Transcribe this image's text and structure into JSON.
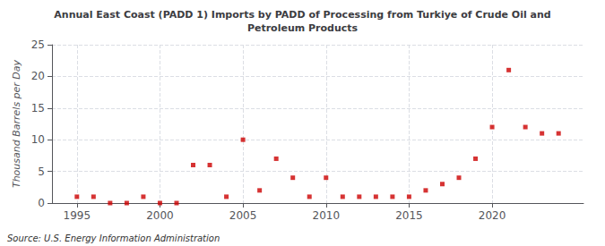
{
  "chart_data": {
    "type": "scatter",
    "title": "Annual East Coast (PADD 1) Imports by PADD of Processing from Turkiye of Crude Oil and\nPetroleum Products",
    "ylabel": "Thousand Barrels per Day",
    "annotation": "Source: U.S. Energy Information Administration",
    "x": [
      1995,
      1996,
      1997,
      1998,
      1999,
      2000,
      2001,
      2002,
      2003,
      2004,
      2005,
      2006,
      2007,
      2008,
      2009,
      2010,
      2011,
      2012,
      2013,
      2014,
      2015,
      2016,
      2017,
      2018,
      2019,
      2020,
      2021,
      2022,
      2023,
      2024
    ],
    "values": [
      1,
      1,
      0,
      0,
      1,
      0,
      0,
      6,
      6,
      1,
      10,
      2,
      7,
      4,
      1,
      4,
      1,
      1,
      1,
      1,
      1,
      2,
      3,
      4,
      7,
      12,
      21,
      12,
      11,
      11
    ],
    "color": "#cc0000",
    "marker": "square",
    "xlim": [
      1993.5,
      2025.5
    ],
    "ylim": [
      0,
      25
    ],
    "xticks": [
      1995,
      2000,
      2005,
      2010,
      2015,
      2020
    ],
    "yticks": [
      0,
      5,
      10,
      15,
      20,
      25
    ],
    "grid": true
  }
}
